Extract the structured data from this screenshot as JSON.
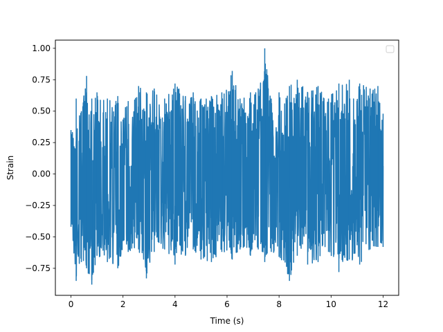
{
  "chart_data": {
    "type": "line",
    "title": "",
    "xlabel": "Time (s)",
    "ylabel": "Strain",
    "xlim": [
      -0.6,
      12.6
    ],
    "ylim": [
      -0.965,
      1.065
    ],
    "x_ticks": [
      0,
      2,
      4,
      6,
      8,
      10,
      12
    ],
    "x_tick_labels": [
      "0",
      "2",
      "4",
      "6",
      "8",
      "10",
      "12"
    ],
    "y_ticks": [
      -0.75,
      -0.5,
      -0.25,
      0.0,
      0.25,
      0.5,
      0.75,
      1.0
    ],
    "y_tick_labels": [
      "−0.75",
      "−0.50",
      "−0.25",
      "0.00",
      "0.25",
      "0.50",
      "0.75",
      "1.00"
    ],
    "grid": false,
    "legend": {
      "placement": "upper-right",
      "entries": []
    },
    "series": [
      {
        "color": "#1f77b4",
        "x_range": [
          0,
          12
        ],
        "envelope": {
          "x": [
            0,
            0.2,
            0.4,
            0.6,
            0.8,
            1.0,
            1.4,
            1.8,
            2.2,
            2.6,
            2.9,
            3.2,
            3.6,
            4.0,
            4.4,
            4.7,
            5.0,
            5.4,
            5.8,
            6.2,
            6.5,
            6.9,
            7.2,
            7.45,
            7.7,
            8.0,
            8.4,
            8.7,
            9.1,
            9.5,
            9.9,
            10.3,
            10.7,
            11.1,
            11.5,
            11.8,
            12.0
          ],
          "high": [
            0.35,
            0.6,
            0.5,
            0.78,
            0.6,
            0.65,
            0.6,
            0.62,
            0.58,
            0.7,
            0.65,
            0.68,
            0.6,
            0.72,
            0.62,
            0.65,
            0.6,
            0.62,
            0.65,
            0.82,
            0.6,
            0.65,
            0.68,
            1.0,
            0.6,
            0.65,
            0.7,
            0.75,
            0.65,
            0.7,
            0.6,
            0.72,
            0.75,
            0.72,
            0.68,
            0.7,
            0.48
          ],
          "low": [
            -0.42,
            -0.85,
            -0.7,
            -0.75,
            -0.88,
            -0.65,
            -0.7,
            -0.75,
            -0.62,
            -0.6,
            -0.83,
            -0.62,
            -0.6,
            -0.72,
            -0.65,
            -0.6,
            -0.68,
            -0.7,
            -0.62,
            -0.68,
            -0.6,
            -0.65,
            -0.6,
            -0.7,
            -0.62,
            -0.66,
            -0.85,
            -0.65,
            -0.72,
            -0.7,
            -0.62,
            -0.78,
            -0.68,
            -0.72,
            -0.6,
            -0.58,
            -0.58
          ]
        }
      }
    ]
  }
}
